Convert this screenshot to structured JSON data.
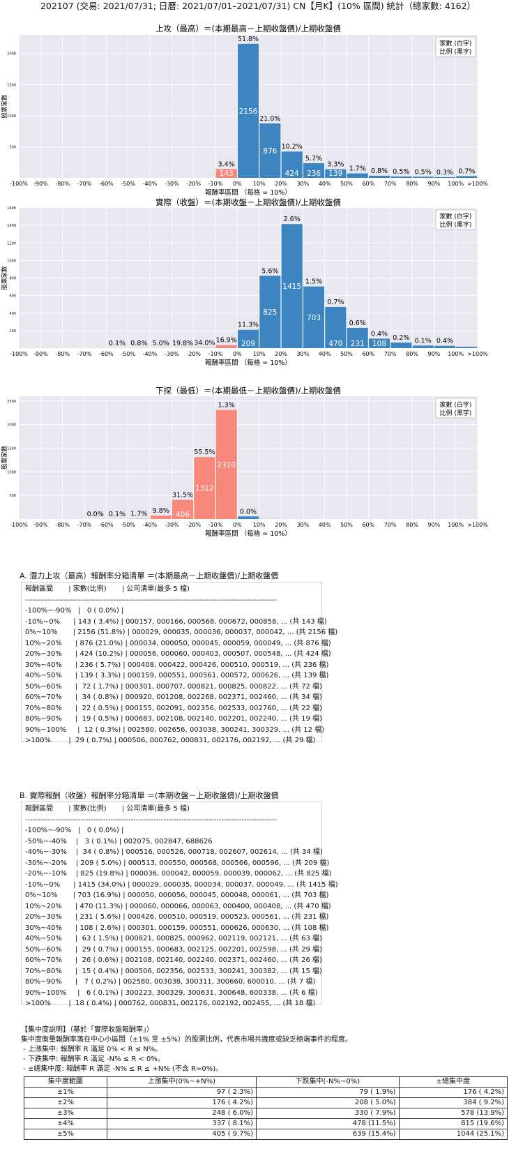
{
  "page_title": "202107 (交易: 2021/07/31; 日曆: 2021/07/01–2021/07/31) CN【月K】(10% 區間) 統計（總家數: 4162）",
  "legend_lines": [
    "家數 (白字)",
    "比例 (黑字)"
  ],
  "chart_data": [
    {
      "type": "bar",
      "title": "上攻（最高）＝(本期最高－上期收盤價)/上期收盤價",
      "xlabel": "報酬率區間 （每格 = 10%）",
      "ylabel": "股票家數",
      "x_ticks": [
        "-100%",
        "-90%",
        "-80%",
        "-70%",
        "-60%",
        "-50%",
        "-40%",
        "-30%",
        "-20%",
        "-10%",
        "0%",
        "10%",
        "20%",
        "30%",
        "40%",
        "50%",
        "60%",
        "70%",
        "80%",
        "90%",
        "100%",
        ">100%"
      ],
      "bins": [
        -9,
        -8,
        -7,
        -6,
        -5,
        -4,
        -3,
        -2,
        -1,
        0,
        1,
        2,
        3,
        4,
        5,
        6,
        7,
        8,
        9,
        10,
        11
      ],
      "counts": [
        0,
        0,
        0,
        0,
        0,
        0,
        0,
        0,
        0,
        143,
        2156,
        876,
        424,
        236,
        139,
        72,
        34,
        22,
        19,
        12,
        29
      ],
      "pct_labels": [
        "",
        "",
        "",
        "",
        "",
        "",
        "",
        "",
        "",
        "3.4%",
        "51.8%",
        "21.0%",
        "10.2%",
        "5.7%",
        "3.3%",
        "1.7%",
        "0.8%",
        "0.5%",
        "0.5%",
        "0.3%",
        "0.7%"
      ],
      "ylim": [
        0,
        2300
      ],
      "y_ticks": [
        500,
        1000,
        1500,
        2000
      ],
      "colors": {
        "negative": "#f8887a",
        "positive": "#3d85c0",
        "background": "#e8e8f1"
      },
      "legend": "top-right",
      "grid": true
    },
    {
      "type": "bar",
      "title": "實際（收盤）＝(本期收盤－上期收盤價)/上期收盤價",
      "xlabel": "報酬率區間 （每格 = 10%）",
      "ylabel": "股票家數",
      "x_ticks": [
        "-100%",
        "-90%",
        "-80%",
        "-70%",
        "-60%",
        "-50%",
        "-40%",
        "-30%",
        "-20%",
        "-10%",
        "0%",
        "10%",
        "20%",
        "30%",
        "40%",
        "50%",
        "60%",
        "70%",
        "80%",
        "90%",
        "100%",
        ">100%"
      ],
      "bins": [
        -9,
        -8,
        -7,
        -6,
        -5,
        -4,
        -3,
        -2,
        -1,
        0,
        1,
        2,
        3,
        4,
        5,
        6,
        7,
        8,
        9,
        10,
        11
      ],
      "counts": [
        0,
        0,
        0,
        0,
        3,
        34,
        209,
        825,
        1415,
        703,
        470,
        231,
        108,
        63,
        29,
        26,
        15,
        7,
        6,
        18
      ],
      "bin_start": -5,
      "pct_labels": [
        "0.1%",
        "0.8%",
        "5.0%",
        "19.8%",
        "34.0%",
        "16.9%",
        "11.3%",
        "5.6%",
        "2.6%",
        "1.5%",
        "0.7%",
        "0.6%",
        "0.4%",
        "0.2%",
        "0.1%",
        "0.4%"
      ],
      "ylim": [
        0,
        1600
      ],
      "y_ticks": [
        200,
        400,
        600,
        800,
        1000,
        1200,
        1400,
        1600
      ],
      "colors": {
        "negative": "#f8887a",
        "positive": "#3d85c0",
        "background": "#e8e8f1"
      },
      "legend": "top-right",
      "grid": true
    },
    {
      "type": "bar",
      "title": "下探（最低）＝(本期最低－上期收盤價)/上期收盤價",
      "xlabel": "報酬率區間 （每格 = 10%）",
      "ylabel": "股票家數",
      "x_ticks": [
        "-100%",
        "-90%",
        "-80%",
        "-70%",
        "-60%",
        "-50%",
        "-40%",
        "-30%",
        "-20%",
        "-10%",
        "0%",
        "10%",
        "20%",
        "30%",
        "40%",
        "50%",
        "60%",
        "70%",
        "80%",
        "90%",
        "100%",
        ">100%"
      ],
      "counts": [
        0,
        1,
        5,
        71,
        406,
        1312,
        2310,
        55,
        2
      ],
      "bin_start": -6,
      "pct_labels": [
        "0.0%",
        "0.1%",
        "1.7%",
        "9.8%",
        "31.5%",
        "55.5%",
        "1.3%",
        "0.0%"
      ],
      "ylim": [
        0,
        2600
      ],
      "y_ticks": [
        500,
        1000,
        1500,
        2000,
        2500
      ],
      "colors": {
        "negative": "#f8887a",
        "positive": "#3d85c0",
        "background": "#e8e8f1"
      },
      "legend": "top-right",
      "grid": true
    }
  ],
  "section_a": {
    "title": "A. 潛力上攻（最高）報酬率分箱清單 ＝(本期最高－上期收盤價)/上期收盤價",
    "lines": [
      "報酬區間       | 家數(比例)       | 公司清單(最多 5 檔)",
      "----------------------------------------------------------------------------------------------------",
      "-100%~-90%   |   0 ( 0.0%) |",
      "-10%~0%      | 143 ( 3.4%) | 000157, 000166, 000568, 000672, 000858, ... (共 143 檔)",
      "0%~10%       | 2156 (51.8%) | 000029, 000035, 000036, 000037, 000042, ... (共 2156 檔)",
      "10%~20%      | 876 (21.0%) | 000034, 000050, 000045, 000059, 000049, ... (共 876 檔)",
      "20%~30%      | 424 (10.2%) | 000056, 000060, 000403, 000507, 000548, ... (共 424 檔)",
      "30%~40%      | 236 ( 5.7%) | 000408, 000422, 000426, 000510, 000519, ... (共 236 檔)",
      "40%~50%      | 139 ( 3.3%) | 000159, 000551, 000561, 000572, 000626, ... (共 139 檔)",
      "50%~60%      |  72 ( 1.7%) | 000301, 000707, 000821, 000825, 000822, ... (共 72 檔)",
      "60%~70%      |  34 ( 0.8%) | 000920, 001208, 002268, 002371, 002460, ... (共 34 檔)",
      "70%~80%      |  22 ( 0.5%) | 000155, 002091, 002356, 002533, 002760, ... (共 22 檔)",
      "80%~90%      |  19 ( 0.5%) | 000683, 002108, 002140, 002201, 002240, ... (共 19 檔)",
      "90%~100%     |  12 ( 0.3%) | 002580, 002656, 003038, 300241, 300329, ... (共 12 檔)",
      ">100%        |  29 ( 0.7%) | 000506, 000762, 000831, 002176, 002192, ... (共 29 檔)"
    ]
  },
  "section_b": {
    "title": "B. 實際報酬（收盤）報酬率分箱清單 ＝(本期收盤－上期收盤價)/上期收盤價",
    "lines": [
      "報酬區間       | 家數(比例)       | 公司清單(最多 5 檔)",
      "----------------------------------------------------------------------------------------------------",
      "-100%~-90%   |   0 ( 0.0%) |",
      "-50%~-40%    |   3 ( 0.1%) | 002075, 002847, 688626",
      "-40%~-30%    |  34 ( 0.8%) | 000516, 000526, 000718, 002607, 002614, ... (共 34 檔)",
      "-30%~-20%    | 209 ( 5.0%) | 000513, 000550, 000568, 000566, 000596, ... (共 209 檔)",
      "-20%~-10%    | 825 (19.8%) | 000036, 000042, 000059, 000039, 000062, ... (共 825 檔)",
      "-10%~0%      | 1415 (34.0%) | 000029, 000035, 000034, 000037, 000049, ... (共 1415 檔)",
      "0%~10%       | 703 (16.9%) | 000050, 000056, 000045, 000048, 000061, ... (共 703 檔)",
      "10%~20%      | 470 (11.3%) | 000060, 000066, 000063, 000400, 000408, ... (共 470 檔)",
      "20%~30%      | 231 ( 5.6%) | 000426, 000510, 000519, 000523, 000561, ... (共 231 檔)",
      "30%~40%      | 108 ( 2.6%) | 000301, 000159, 000551, 000626, 000630, ... (共 108 檔)",
      "40%~50%      |  63 ( 1.5%) | 000821, 000825, 000962, 002119, 002121, ... (共 63 檔)",
      "50%~60%      |  29 ( 0.7%) | 000155, 000683, 002125, 002201, 002598, ... (共 29 檔)",
      "60%~70%      |  26 ( 0.6%) | 002108, 002140, 002240, 002371, 002460, ... (共 26 檔)",
      "70%~80%      |  15 ( 0.4%) | 000506, 002356, 002533, 300241, 300382, ... (共 15 檔)",
      "80%~90%      |   7 ( 0.2%) | 002580, 003038, 300311, 300660, 600010, ... (共 7 檔)",
      "90%~100%     |   6 ( 0.1%) | 300223, 300329, 300631, 300648, 600338, ... (共 6 檔)",
      ">100%        |  18 ( 0.4%) | 000762, 000831, 002176, 002192, 002455, ... (共 18 檔)"
    ]
  },
  "concentration": {
    "lines": [
      "【集中度說明】（基於「實際收盤報酬率」）",
      "集中度衡量報酬率落在中心小區間（±1% 至 ±5%）的股票比例，代表市場共識度或缺乏極端事件的程度。",
      " - 上漲集中: 報酬率 R 滿足 0% < R ≤ N%。",
      " - 下跌集中: 報酬率 R 滿足 -N% ≤ R < 0%。",
      " - ±總集中度: 報酬率 R 滿足 -N% ≤ R ≤ +N% (不含 R=0%)。"
    ],
    "headers": [
      "集中度範圍",
      "上漲集中(0%~+N%)",
      "下跌集中(-N%~0%)",
      "±總集中度"
    ],
    "rows": [
      [
        "±1%",
        "97 ( 2.3%)",
        "79 ( 1.9%)",
        "176 ( 4.2%)"
      ],
      [
        "±2%",
        "176 ( 4.2%)",
        "208 ( 5.0%)",
        "384 ( 9.2%)"
      ],
      [
        "±3%",
        "248 ( 6.0%)",
        "330 ( 7.9%)",
        "578 (13.9%)"
      ],
      [
        "±4%",
        "337 ( 8.1%)",
        "478 (11.5%)",
        "815 (19.6%)"
      ],
      [
        "±5%",
        "405 ( 9.7%)",
        "639 (15.4%)",
        "1044 (25.1%)"
      ]
    ]
  }
}
